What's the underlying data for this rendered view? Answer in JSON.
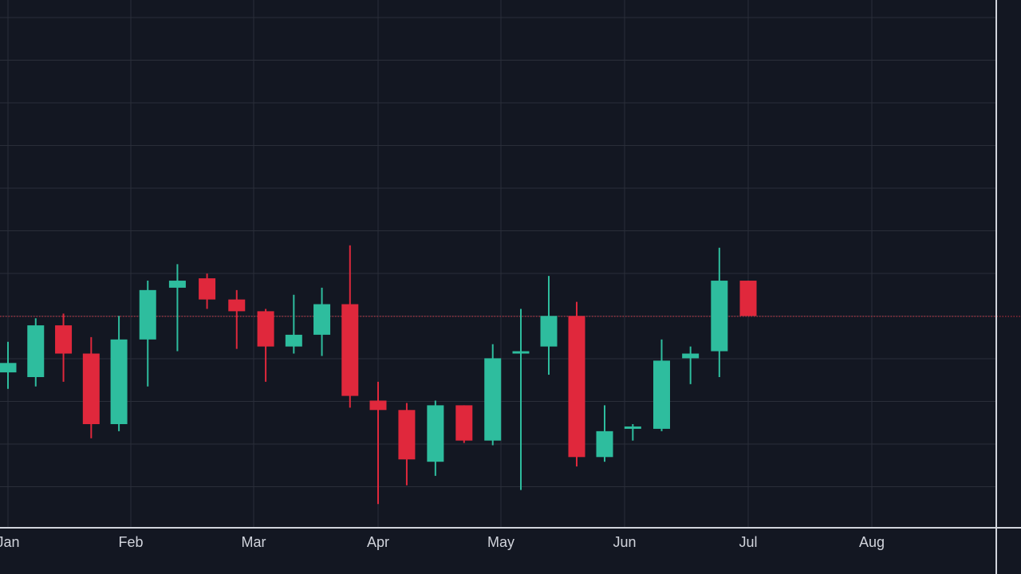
{
  "chart_data": {
    "type": "candlestick",
    "title": "",
    "xlabel": "",
    "ylabel": "",
    "grid": true,
    "legend": "none",
    "x_axis": {
      "tick_labels": [
        "Jan",
        "Feb",
        "Mar",
        "Apr",
        "May",
        "Jun",
        "Jul",
        "Aug"
      ],
      "tick_dates": [
        "2024-01-01",
        "2024-02-01",
        "2024-03-01",
        "2024-04-01",
        "2024-05-01",
        "2024-06-01",
        "2024-07-01",
        "2024-08-01"
      ],
      "range": [
        "2024-01-01",
        "2024-08-31"
      ]
    },
    "y_axis": {
      "range": [
        0,
        100
      ],
      "unit": "relative price (no axis labels shown)"
    },
    "reference_line": {
      "value": 42.9,
      "style": "dotted",
      "color": "#f23645"
    },
    "colors": {
      "up": "#26a69a",
      "up_fill": "#2ebd9e",
      "down": "#e0283c",
      "background": "#131722",
      "grid": "#2a2e39",
      "axis": "#d1d4dc"
    },
    "series": [
      {
        "date": "2024-01-01",
        "open": 31.0,
        "high": 37.5,
        "low": 27.5,
        "close": 33.0
      },
      {
        "date": "2024-01-08",
        "open": 30.0,
        "high": 42.5,
        "low": 28.0,
        "close": 41.0
      },
      {
        "date": "2024-01-15",
        "open": 41.0,
        "high": 43.5,
        "low": 29.0,
        "close": 35.0
      },
      {
        "date": "2024-01-22",
        "open": 35.0,
        "high": 38.5,
        "low": 17.0,
        "close": 20.0
      },
      {
        "date": "2024-01-29",
        "open": 20.0,
        "high": 43.0,
        "low": 18.5,
        "close": 38.0
      },
      {
        "date": "2024-02-05",
        "open": 38.0,
        "high": 50.5,
        "low": 28.0,
        "close": 48.5
      },
      {
        "date": "2024-02-12",
        "open": 49.0,
        "high": 54.0,
        "low": 35.5,
        "close": 50.5
      },
      {
        "date": "2024-02-19",
        "open": 51.0,
        "high": 52.0,
        "low": 44.5,
        "close": 46.5
      },
      {
        "date": "2024-02-26",
        "open": 46.5,
        "high": 48.5,
        "low": 36.0,
        "close": 44.0
      },
      {
        "date": "2024-03-04",
        "open": 44.0,
        "high": 44.5,
        "low": 29.0,
        "close": 36.5
      },
      {
        "date": "2024-03-11",
        "open": 36.5,
        "high": 47.5,
        "low": 35.0,
        "close": 39.0
      },
      {
        "date": "2024-03-18",
        "open": 39.0,
        "high": 49.0,
        "low": 34.5,
        "close": 45.5
      },
      {
        "date": "2024-03-25",
        "open": 45.5,
        "high": 58.0,
        "low": 23.5,
        "close": 26.0
      },
      {
        "date": "2024-04-01",
        "open": 25.0,
        "high": 29.0,
        "low": 3.0,
        "close": 23.0
      },
      {
        "date": "2024-04-08",
        "open": 23.0,
        "high": 24.5,
        "low": 7.0,
        "close": 12.5
      },
      {
        "date": "2024-04-15",
        "open": 12.0,
        "high": 25.0,
        "low": 9.0,
        "close": 24.0
      },
      {
        "date": "2024-04-22",
        "open": 24.0,
        "high": 24.0,
        "low": 16.0,
        "close": 16.5
      },
      {
        "date": "2024-04-29",
        "open": 16.5,
        "high": 37.0,
        "low": 15.5,
        "close": 34.0
      },
      {
        "date": "2024-05-06",
        "open": 35.0,
        "high": 44.5,
        "low": 6.0,
        "close": 35.5
      },
      {
        "date": "2024-05-13",
        "open": 36.5,
        "high": 51.5,
        "low": 30.5,
        "close": 43.0
      },
      {
        "date": "2024-05-20",
        "open": 43.0,
        "high": 46.0,
        "low": 11.0,
        "close": 13.0
      },
      {
        "date": "2024-05-27",
        "open": 13.0,
        "high": 24.0,
        "low": 12.0,
        "close": 18.5
      },
      {
        "date": "2024-06-03",
        "open": 19.0,
        "high": 20.0,
        "low": 16.5,
        "close": 19.5
      },
      {
        "date": "2024-06-10",
        "open": 19.0,
        "high": 38.0,
        "low": 18.5,
        "close": 33.5
      },
      {
        "date": "2024-06-17",
        "open": 34.0,
        "high": 36.5,
        "low": 28.5,
        "close": 35.0
      },
      {
        "date": "2024-06-24",
        "open": 35.5,
        "high": 57.5,
        "low": 30.0,
        "close": 50.5
      },
      {
        "date": "2024-07-01",
        "open": 50.5,
        "high": 50.5,
        "low": 43.0,
        "close": 43.0
      }
    ]
  }
}
